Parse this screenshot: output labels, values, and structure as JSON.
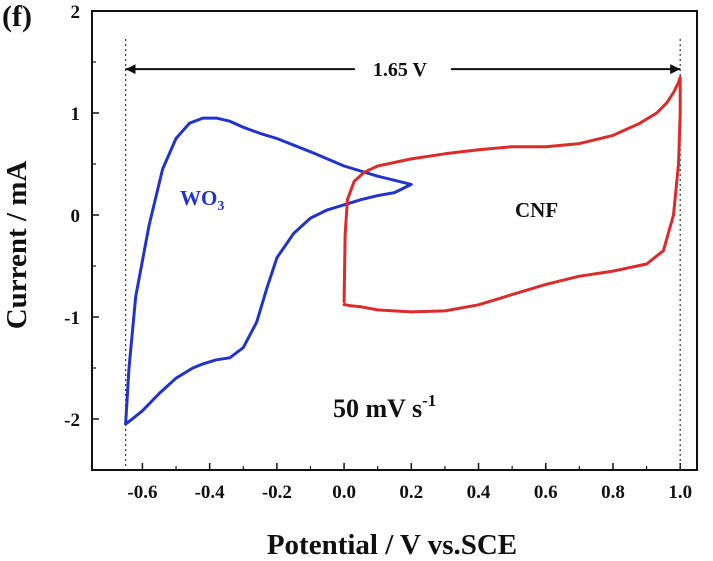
{
  "chart_data": {
    "type": "line",
    "panel_label": "(f)",
    "xlabel": "Potential / V vs.SCE",
    "ylabel": "Current / mA",
    "xlim": [
      -0.75,
      1.05
    ],
    "ylim": [
      -2.5,
      2.0
    ],
    "x_ticks": [
      -0.6,
      -0.4,
      -0.2,
      0.0,
      0.2,
      0.4,
      0.6,
      0.8,
      1.0
    ],
    "x_tick_labels": [
      "-0.6",
      "-0.4",
      "-0.2",
      "0.0",
      "0.2",
      "0.4",
      "0.6",
      "0.8",
      "1.0"
    ],
    "y_ticks": [
      -2,
      -1,
      0,
      1,
      2
    ],
    "y_tick_labels": [
      "-2",
      "-1",
      "0",
      "1",
      "2"
    ],
    "grid": false,
    "colors": {
      "wo3": "#2233cc",
      "cnf": "#dd2a2a",
      "axis": "#111111"
    },
    "series": [
      {
        "name": "WO3",
        "color": "#2233cc",
        "x": [
          -0.65,
          -0.64,
          -0.62,
          -0.58,
          -0.54,
          -0.5,
          -0.46,
          -0.42,
          -0.4,
          -0.38,
          -0.34,
          -0.3,
          -0.25,
          -0.2,
          -0.1,
          0.0,
          0.1,
          0.2,
          0.15,
          0.1,
          0.05,
          0.0,
          -0.05,
          -0.1,
          -0.15,
          -0.2,
          -0.23,
          -0.26,
          -0.3,
          -0.34,
          -0.38,
          -0.42,
          -0.45,
          -0.5,
          -0.55,
          -0.6,
          -0.63,
          -0.65
        ],
        "y": [
          -2.05,
          -1.5,
          -0.8,
          -0.1,
          0.45,
          0.75,
          0.9,
          0.95,
          0.95,
          0.95,
          0.92,
          0.86,
          0.8,
          0.75,
          0.62,
          0.48,
          0.38,
          0.3,
          0.22,
          0.19,
          0.15,
          0.1,
          0.05,
          -0.03,
          -0.18,
          -0.42,
          -0.72,
          -1.05,
          -1.3,
          -1.4,
          -1.42,
          -1.46,
          -1.5,
          -1.6,
          -1.75,
          -1.92,
          -2.0,
          -2.05
        ]
      },
      {
        "name": "CNF",
        "color": "#dd2a2a",
        "x": [
          0.0,
          0.003,
          0.01,
          0.03,
          0.06,
          0.1,
          0.2,
          0.3,
          0.4,
          0.5,
          0.6,
          0.7,
          0.8,
          0.88,
          0.93,
          0.96,
          0.98,
          0.995,
          1.0,
          1.0,
          0.995,
          0.98,
          0.95,
          0.9,
          0.8,
          0.7,
          0.6,
          0.5,
          0.4,
          0.3,
          0.2,
          0.1,
          0.05,
          0.02,
          0.005,
          0.0
        ],
        "y": [
          -0.85,
          -0.2,
          0.15,
          0.33,
          0.42,
          0.48,
          0.55,
          0.6,
          0.64,
          0.67,
          0.67,
          0.7,
          0.78,
          0.9,
          1.0,
          1.1,
          1.2,
          1.3,
          1.35,
          1.0,
          0.5,
          0.0,
          -0.35,
          -0.48,
          -0.55,
          -0.6,
          -0.68,
          -0.78,
          -0.88,
          -0.94,
          -0.95,
          -0.93,
          -0.9,
          -0.89,
          -0.88,
          -0.88
        ]
      }
    ],
    "annotations": {
      "wo3_label": "WO",
      "wo3_subscript": "3",
      "cnf_label": "CNF",
      "scan_rate_text": "50 mV s",
      "scan_rate_sup": "-1",
      "window_text": "1.65 V",
      "window_from_x": -0.65,
      "window_to_x": 1.0,
      "window_y": 1.43
    }
  }
}
